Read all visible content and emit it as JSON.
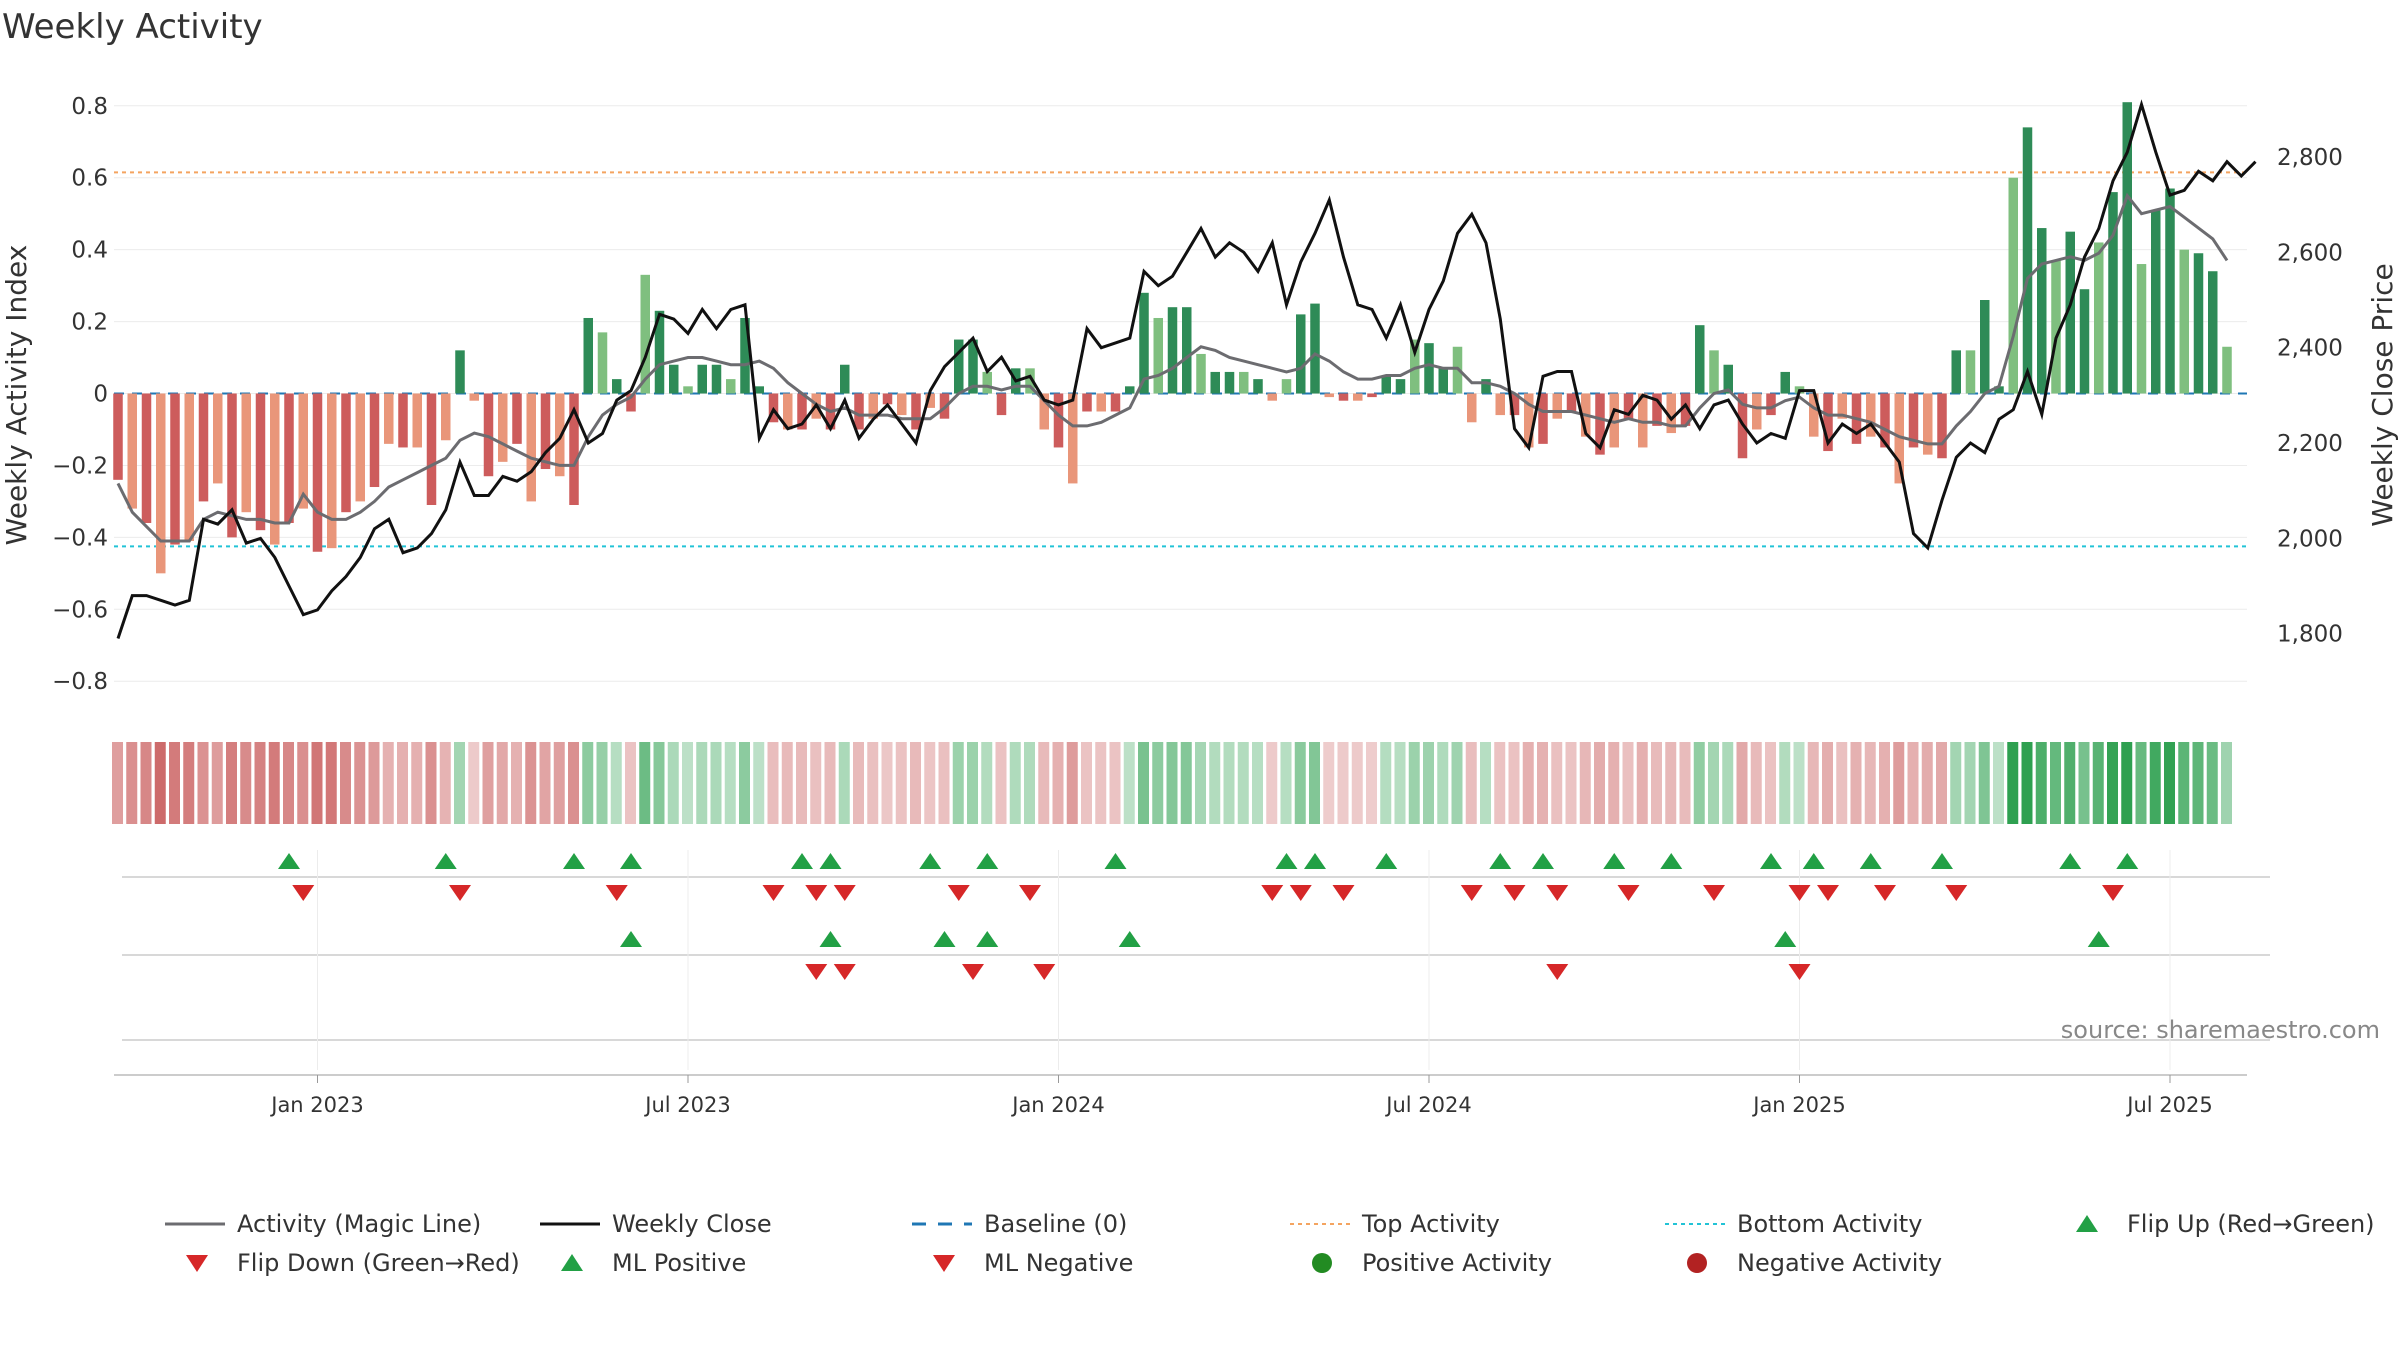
{
  "colors": {
    "pos_strong": "#2e8b57",
    "pos_weak": "#7fbf7f",
    "neg_strong": "#cd5c5c",
    "neg_weak": "#e9967a",
    "magic": "#6c6c70",
    "close": "#111111",
    "baseline": "#1f77b4",
    "top": "#f4a460",
    "bottom": "#22c3d6",
    "flip_up": "#22a045",
    "flip_down": "#d62728",
    "pos_dot": "#228b22",
    "neg_dot": "#b22222"
  },
  "chart_data": {
    "type": "bar",
    "title": "Weekly Activity",
    "ylabel_left": "Weekly Activity Index",
    "ylabel_right": "Weekly Close Price",
    "ylim_left": [
      -0.88,
      0.83
    ],
    "ylim_right": [
      1640,
      2930
    ],
    "left_ticks": [
      0.8,
      0.6,
      0.4,
      0.2,
      0,
      -0.2,
      -0.4,
      -0.6,
      -0.8
    ],
    "left_tick_labels": [
      "0.8",
      "0.6",
      "0.4",
      "0.2",
      "0",
      "−0.2",
      "−0.4",
      "−0.6",
      "−0.8"
    ],
    "right_ticks": [
      1800,
      2000,
      2200,
      2400,
      2600,
      2800
    ],
    "right_tick_labels": [
      "1,800",
      "2,000",
      "2,200",
      "2,400",
      "2,600",
      "2,800"
    ],
    "top_activity": 0.615,
    "bottom_activity": -0.425,
    "x_start_week": 0,
    "x_dates": [
      {
        "label": "Jan 2023",
        "week": 14
      },
      {
        "label": "Jul 2023",
        "week": 40
      },
      {
        "label": "Jan 2024",
        "week": 66
      },
      {
        "label": "Jul 2024",
        "week": 92
      },
      {
        "label": "Jan 2025",
        "week": 118
      },
      {
        "label": "Jul 2025",
        "week": 144
      }
    ],
    "activity": [
      -0.24,
      -0.32,
      -0.36,
      -0.5,
      -0.42,
      -0.41,
      -0.3,
      -0.25,
      -0.4,
      -0.33,
      -0.38,
      -0.42,
      -0.36,
      -0.32,
      -0.44,
      -0.43,
      -0.33,
      -0.3,
      -0.26,
      -0.14,
      -0.15,
      -0.15,
      -0.31,
      -0.13,
      0.12,
      -0.02,
      -0.23,
      -0.19,
      -0.14,
      -0.3,
      -0.21,
      -0.23,
      -0.31,
      0.21,
      0.17,
      0.04,
      -0.05,
      0.33,
      0.23,
      0.08,
      0.02,
      0.08,
      0.08,
      0.04,
      0.21,
      0.02,
      -0.08,
      -0.1,
      -0.1,
      -0.07,
      -0.1,
      0.08,
      -0.1,
      -0.07,
      -0.03,
      -0.06,
      -0.1,
      -0.04,
      -0.07,
      0.15,
      0.15,
      0.06,
      -0.06,
      0.07,
      0.07,
      -0.1,
      -0.15,
      -0.25,
      -0.05,
      -0.05,
      -0.05,
      0.02,
      0.28,
      0.21,
      0.24,
      0.24,
      0.11,
      0.06,
      0.06,
      0.06,
      0.04,
      -0.02,
      0.04,
      0.22,
      0.25,
      -0.01,
      -0.02,
      -0.02,
      -0.01,
      0.05,
      0.04,
      0.15,
      0.14,
      0.07,
      0.13,
      -0.08,
      0.04,
      -0.06,
      -0.06,
      -0.15,
      -0.14,
      -0.07,
      -0.05,
      -0.12,
      -0.17,
      -0.15,
      -0.07,
      -0.15,
      -0.09,
      -0.11,
      -0.09,
      0.19,
      0.12,
      0.08,
      -0.18,
      -0.1,
      -0.06,
      0.06,
      0.02,
      -0.12,
      -0.16,
      -0.07,
      -0.14,
      -0.12,
      -0.15,
      -0.25,
      -0.15,
      -0.17,
      -0.18,
      0.12,
      0.12,
      0.26,
      0.02,
      0.6,
      0.74,
      0.46,
      0.37,
      0.45,
      0.29,
      0.42,
      0.56,
      0.81,
      0.36,
      0.51,
      0.57,
      0.4,
      0.39,
      0.34,
      0.13
    ],
    "magic_line": [
      -0.25,
      -0.33,
      -0.37,
      -0.41,
      -0.41,
      -0.41,
      -0.35,
      -0.33,
      -0.34,
      -0.35,
      -0.35,
      -0.36,
      -0.36,
      -0.28,
      -0.33,
      -0.35,
      -0.35,
      -0.33,
      -0.3,
      -0.26,
      -0.24,
      -0.22,
      -0.2,
      -0.18,
      -0.13,
      -0.11,
      -0.12,
      -0.14,
      -0.16,
      -0.18,
      -0.19,
      -0.2,
      -0.2,
      -0.12,
      -0.06,
      -0.03,
      -0.01,
      0.04,
      0.08,
      0.09,
      0.1,
      0.1,
      0.09,
      0.08,
      0.08,
      0.09,
      0.07,
      0.03,
      0.0,
      -0.03,
      -0.05,
      -0.04,
      -0.06,
      -0.06,
      -0.06,
      -0.07,
      -0.07,
      -0.07,
      -0.04,
      0.0,
      0.02,
      0.02,
      0.01,
      0.02,
      0.02,
      -0.02,
      -0.06,
      -0.09,
      -0.09,
      -0.08,
      -0.06,
      -0.04,
      0.04,
      0.05,
      0.07,
      0.1,
      0.13,
      0.12,
      0.1,
      0.09,
      0.08,
      0.07,
      0.06,
      0.07,
      0.11,
      0.09,
      0.06,
      0.04,
      0.04,
      0.05,
      0.05,
      0.07,
      0.08,
      0.07,
      0.07,
      0.03,
      0.03,
      0.02,
      0.0,
      -0.03,
      -0.05,
      -0.05,
      -0.05,
      -0.06,
      -0.07,
      -0.08,
      -0.07,
      -0.08,
      -0.08,
      -0.09,
      -0.09,
      -0.04,
      0.0,
      0.01,
      -0.03,
      -0.04,
      -0.04,
      -0.02,
      -0.01,
      -0.04,
      -0.06,
      -0.06,
      -0.07,
      -0.08,
      -0.1,
      -0.12,
      -0.13,
      -0.14,
      -0.14,
      -0.09,
      -0.05,
      0.0,
      0.02,
      0.16,
      0.32,
      0.36,
      0.37,
      0.38,
      0.37,
      0.39,
      0.44,
      0.55,
      0.5,
      0.51,
      0.52,
      0.49,
      0.46,
      0.43,
      0.37
    ],
    "weekly_close": [
      1790,
      1880,
      1880,
      1870,
      1860,
      1870,
      2040,
      2030,
      2060,
      1990,
      2000,
      1960,
      1900,
      1840,
      1850,
      1890,
      1920,
      1960,
      2020,
      2040,
      1970,
      1980,
      2010,
      2060,
      2160,
      2090,
      2090,
      2130,
      2120,
      2140,
      2180,
      2210,
      2270,
      2200,
      2220,
      2290,
      2310,
      2380,
      2470,
      2460,
      2430,
      2480,
      2440,
      2480,
      2490,
      2210,
      2270,
      2230,
      2240,
      2280,
      2230,
      2290,
      2210,
      2250,
      2280,
      2240,
      2200,
      2310,
      2360,
      2390,
      2420,
      2350,
      2380,
      2330,
      2340,
      2290,
      2280,
      2290,
      2440,
      2400,
      2410,
      2420,
      2560,
      2530,
      2550,
      2600,
      2650,
      2590,
      2620,
      2600,
      2560,
      2620,
      2490,
      2580,
      2640,
      2710,
      2590,
      2490,
      2480,
      2420,
      2490,
      2390,
      2480,
      2540,
      2640,
      2680,
      2620,
      2460,
      2230,
      2190,
      2340,
      2350,
      2350,
      2220,
      2190,
      2270,
      2260,
      2300,
      2290,
      2250,
      2280,
      2230,
      2280,
      2290,
      2240,
      2200,
      2220,
      2210,
      2310,
      2310,
      2200,
      2240,
      2220,
      2240,
      2200,
      2160,
      2010,
      1980,
      2080,
      2170,
      2200,
      2180,
      2250,
      2270,
      2350,
      2260,
      2420,
      2490,
      2590,
      2650,
      2750,
      2810,
      2910,
      2810,
      2720,
      2730,
      2770,
      2750,
      2790,
      2760,
      2790
    ],
    "bands": [
      {
        "name": "Activity",
        "pos": [
          0.89,
          0.89
        ],
        "neg": [
          0.11,
          0.11
        ]
      },
      {
        "name": "ML",
        "pos": [
          5,
          4
        ],
        "neg": [
          5,
          4
        ]
      }
    ],
    "flip_up_weeks": [
      12,
      23,
      32,
      36,
      48,
      50,
      57,
      61,
      70,
      82,
      84,
      89,
      97,
      100,
      105,
      109,
      116,
      119,
      123,
      128,
      137,
      141
    ],
    "flip_down_weeks": [
      13,
      24,
      35,
      46,
      49,
      51,
      59,
      64,
      81,
      83,
      86,
      95,
      98,
      101,
      106,
      112,
      118,
      120,
      124,
      129,
      140
    ],
    "ml_positive_weeks": [
      36,
      50,
      58,
      61,
      71,
      117,
      139
    ],
    "ml_negative_weeks": [
      49,
      51,
      60,
      65,
      101,
      118
    ],
    "source": "source: sharemaestro.com"
  },
  "legend": [
    {
      "label": "Activity (Magic Line)",
      "symbol": "line",
      "key": "magic"
    },
    {
      "label": "Weekly Close",
      "symbol": "line",
      "key": "close"
    },
    {
      "label": "Baseline (0)",
      "symbol": "dash",
      "key": "baseline"
    },
    {
      "label": "Top Activity",
      "symbol": "dot-line",
      "key": "top"
    },
    {
      "label": "Bottom Activity",
      "symbol": "dot-line",
      "key": "bottom"
    },
    {
      "label": "Flip Up (Red→Green)",
      "symbol": "tri-up",
      "key": "flip_up"
    },
    {
      "label": "Flip Down (Green→Red)",
      "symbol": "tri-down",
      "key": "flip_down"
    },
    {
      "label": "ML Positive",
      "symbol": "tri-up",
      "key": "flip_up"
    },
    {
      "label": "ML Negative",
      "symbol": "tri-down",
      "key": "flip_down"
    },
    {
      "label": "Positive Activity",
      "symbol": "circle",
      "key": "pos_dot"
    },
    {
      "label": "Negative Activity",
      "symbol": "circle",
      "key": "neg_dot"
    }
  ]
}
